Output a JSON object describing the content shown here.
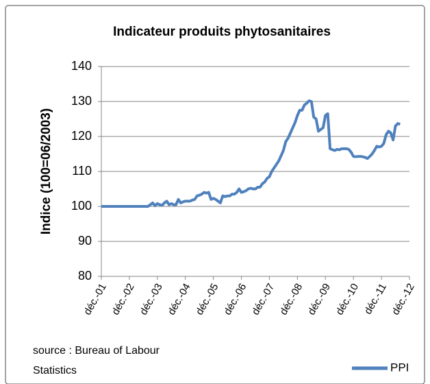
{
  "chart_data": {
    "type": "line",
    "title": "Indicateur produits phytosanitaires",
    "y_label": "Indice (100=06/2003)",
    "source": "source : Bureau of Labour Statistics",
    "categories": [
      "déc.-01",
      null,
      null,
      null,
      null,
      null,
      null,
      null,
      null,
      null,
      null,
      null,
      "déc.-02",
      null,
      null,
      null,
      null,
      null,
      null,
      null,
      null,
      null,
      null,
      null,
      "déc.-03",
      null,
      null,
      null,
      null,
      null,
      null,
      null,
      null,
      null,
      null,
      null,
      "déc.-04",
      null,
      null,
      null,
      null,
      null,
      null,
      null,
      null,
      null,
      null,
      null,
      "déc.-05",
      null,
      null,
      null,
      null,
      null,
      null,
      null,
      null,
      null,
      null,
      null,
      "déc.-06",
      null,
      null,
      null,
      null,
      null,
      null,
      null,
      null,
      null,
      null,
      null,
      "déc.-07",
      null,
      null,
      null,
      null,
      null,
      null,
      null,
      null,
      null,
      null,
      null,
      "déc.-08",
      null,
      null,
      null,
      null,
      null,
      null,
      null,
      null,
      null,
      null,
      null,
      "déc.-09",
      null,
      null,
      null,
      null,
      null,
      null,
      null,
      null,
      null,
      null,
      null,
      "déc.-10",
      null,
      null,
      null,
      null,
      null,
      null,
      null,
      null,
      null,
      null,
      null,
      "déc.-11",
      null,
      null,
      null,
      null,
      null,
      null,
      null,
      null,
      null,
      null,
      null,
      "déc.-12"
    ],
    "series": [
      {
        "name": "PPI",
        "color": "#4f81bd",
        "values": [
          100,
          100,
          100,
          100,
          100,
          100,
          100,
          100,
          100,
          100,
          100,
          100,
          100,
          100,
          100,
          100,
          100,
          100,
          100,
          100,
          100,
          100.5,
          101,
          100.2,
          100.8,
          100.5,
          100.3,
          101,
          101.5,
          100.5,
          100.8,
          100.5,
          100.5,
          102,
          101,
          101.3,
          101.5,
          101.5,
          101.5,
          101.8,
          102,
          103,
          103.2,
          103.5,
          104,
          103.8,
          104,
          102,
          102.3,
          102,
          101.5,
          101,
          103,
          102.8,
          103,
          103,
          103.5,
          103.5,
          104,
          105,
          104,
          104.2,
          104.5,
          105,
          105.2,
          105,
          105,
          105.5,
          105.5,
          106.5,
          107,
          108,
          108.5,
          110,
          111,
          112,
          113,
          114.5,
          116,
          118.5,
          119.5,
          121,
          122.5,
          124,
          126,
          127.5,
          127.5,
          129,
          129.5,
          130.2,
          130,
          125.5,
          125,
          121.5,
          122,
          122.5,
          126,
          126.5,
          116.5,
          116.2,
          116,
          116.3,
          116.2,
          116.5,
          116.5,
          116.5,
          116.3,
          115.5,
          114.3,
          114.2,
          114.3,
          114.3,
          114.2,
          114,
          113.7,
          114.3,
          115,
          116,
          117.2,
          117,
          117.2,
          118,
          120.5,
          121.5,
          121,
          119,
          123,
          123.7,
          123.5,
          null,
          null,
          null,
          null
        ]
      }
    ],
    "ylim": [
      80,
      140
    ],
    "yticks": [
      80,
      90,
      100,
      110,
      120,
      130,
      140
    ],
    "grid": true,
    "legend": "bottom-right"
  }
}
